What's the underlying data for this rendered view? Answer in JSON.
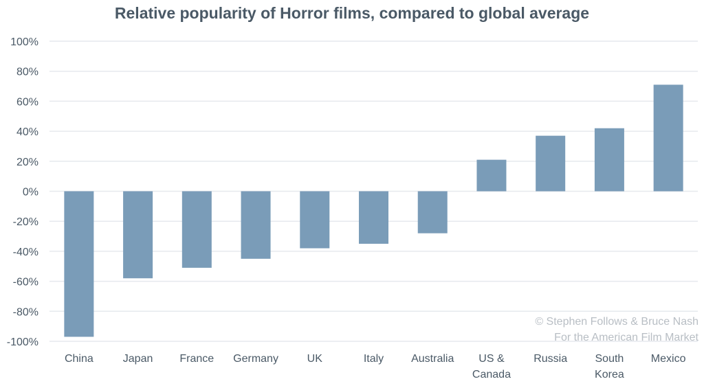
{
  "chart_data": {
    "type": "bar",
    "title": "Relative popularity of Horror films, compared to global average",
    "categories": [
      "China",
      "Japan",
      "France",
      "Germany",
      "UK",
      "Italy",
      "Australia",
      "US & Canada",
      "Russia",
      "South Korea",
      "Mexico"
    ],
    "category_lines": [
      [
        "China"
      ],
      [
        "Japan"
      ],
      [
        "France"
      ],
      [
        "Germany"
      ],
      [
        "UK"
      ],
      [
        "Italy"
      ],
      [
        "Australia"
      ],
      [
        "US &",
        "Canada"
      ],
      [
        "Russia"
      ],
      [
        "South",
        "Korea"
      ],
      [
        "Mexico"
      ]
    ],
    "values": [
      -97,
      -58,
      -51,
      -45,
      -38,
      -35,
      -28,
      21,
      37,
      42,
      71
    ],
    "ylim": [
      -100,
      100
    ],
    "yticks": [
      100,
      80,
      60,
      40,
      20,
      0,
      -20,
      -40,
      -60,
      -80,
      -100
    ],
    "ytick_labels": [
      "100%",
      "80%",
      "60%",
      "40%",
      "20%",
      "0%",
      "-20%",
      "-40%",
      "-60%",
      "-80%",
      "-100%"
    ],
    "xlabel": "",
    "ylabel": "",
    "grid": true,
    "bar_color": "#7a9cb8"
  },
  "credit": [
    "© Stephen Follows & Bruce Nash",
    "For the American Film Market"
  ]
}
